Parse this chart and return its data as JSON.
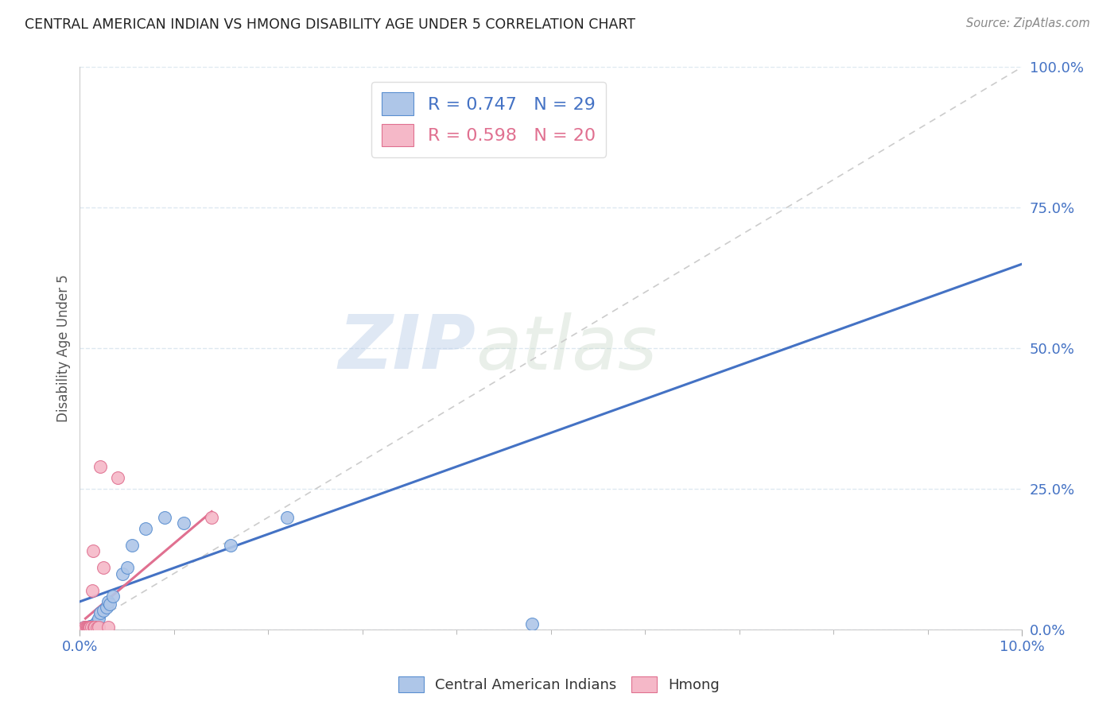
{
  "title": "CENTRAL AMERICAN INDIAN VS HMONG DISABILITY AGE UNDER 5 CORRELATION CHART",
  "source": "Source: ZipAtlas.com",
  "ylabel": "Disability Age Under 5",
  "xlim": [
    0.0,
    10.0
  ],
  "ylim": [
    0.0,
    100.0
  ],
  "watermark_zip": "ZIP",
  "watermark_atlas": "atlas",
  "blue_R": 0.747,
  "blue_N": 29,
  "pink_R": 0.598,
  "pink_N": 20,
  "blue_label": "Central American Indians",
  "pink_label": "Hmong",
  "blue_color": "#aec6e8",
  "pink_color": "#f5b8c8",
  "blue_edge_color": "#5a8fd0",
  "pink_edge_color": "#e07090",
  "blue_line_color": "#4472c4",
  "pink_line_color": "#e07090",
  "diagonal_color": "#cccccc",
  "grid_color": "#dde8f0",
  "background_color": "#ffffff",
  "blue_scatter_x": [
    0.05,
    0.07,
    0.08,
    0.09,
    0.1,
    0.11,
    0.12,
    0.13,
    0.14,
    0.15,
    0.16,
    0.17,
    0.18,
    0.2,
    0.22,
    0.25,
    0.28,
    0.3,
    0.32,
    0.35,
    0.45,
    0.5,
    0.55,
    0.7,
    0.9,
    1.1,
    1.6,
    2.2,
    4.8
  ],
  "blue_scatter_y": [
    0.5,
    0.5,
    0.3,
    0.4,
    0.5,
    0.6,
    0.4,
    0.5,
    0.7,
    0.8,
    0.9,
    1.0,
    1.5,
    2.0,
    3.0,
    3.5,
    4.0,
    5.0,
    4.5,
    6.0,
    10.0,
    11.0,
    15.0,
    18.0,
    20.0,
    19.0,
    15.0,
    20.0,
    1.0
  ],
  "pink_scatter_x": [
    0.05,
    0.06,
    0.07,
    0.08,
    0.09,
    0.1,
    0.1,
    0.11,
    0.12,
    0.13,
    0.14,
    0.15,
    0.16,
    0.18,
    0.2,
    0.22,
    0.25,
    0.3,
    0.4,
    1.4
  ],
  "pink_scatter_y": [
    0.5,
    0.3,
    0.4,
    0.5,
    0.4,
    0.5,
    0.3,
    0.4,
    0.5,
    7.0,
    14.0,
    0.5,
    0.4,
    0.3,
    0.5,
    29.0,
    11.0,
    0.5,
    27.0,
    20.0
  ],
  "blue_line_x": [
    0.0,
    10.0
  ],
  "blue_line_y": [
    5.0,
    65.0
  ],
  "pink_line_x": [
    0.06,
    1.4
  ],
  "pink_line_y": [
    2.0,
    21.0
  ]
}
